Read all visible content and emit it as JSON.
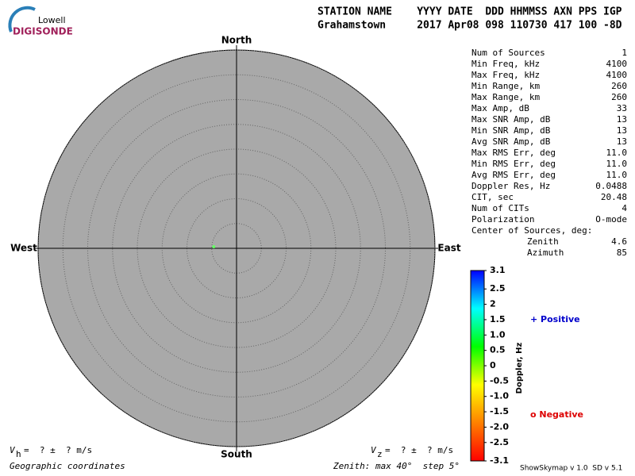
{
  "header": {
    "logo_top": "Lowell",
    "logo_main": "DIGISONDE",
    "labels": "STATION NAME    YYYY DATE  DDD HHMMSS AXN PPS IGP",
    "values": "Grahamstown     2017 Apr08 098 110730 417 100 -8D"
  },
  "chart_data": {
    "type": "skymap",
    "directions": {
      "north": "North",
      "south": "South",
      "west": "West",
      "east": "East"
    },
    "rlim": [
      0,
      40
    ],
    "rticks": [
      5,
      10,
      15,
      20,
      25,
      30,
      35,
      40
    ],
    "points": [
      {
        "zenith": 4.6,
        "azimuth": 274,
        "color": "#66ff66"
      }
    ],
    "colorbar": {
      "label": "Doppler, Hz",
      "clim": [
        -3.1,
        3.1
      ],
      "ticks": [
        3.1,
        2.5,
        {
          "value": 2,
          "label": "2"
        },
        1.5,
        {
          "value": 1,
          "label": "1.0"
        },
        0.5,
        0,
        -0.5,
        {
          "value": -1,
          "label": "-1.0"
        },
        -1.5,
        {
          "value": -2,
          "label": "-2.0"
        },
        -2.5,
        -3.1
      ],
      "colors": [
        "#ff0000",
        "#ff8000",
        "#ffff00",
        "#00ff00",
        "#00ffff",
        "#0000ff"
      ]
    },
    "legend": {
      "positive": "+ Positive",
      "positive_color": "#0000cc",
      "negative": "o Negative",
      "negative_color": "#dd0000"
    }
  },
  "stats": {
    "rows": [
      [
        "Num of Sources",
        "1"
      ],
      [
        "Min Freq, kHz",
        "4100"
      ],
      [
        "Max Freq, kHz",
        "4100"
      ],
      [
        "Min Range, km",
        "260"
      ],
      [
        "Max Range, km",
        "260"
      ],
      [
        "Max Amp, dB",
        "33"
      ],
      [
        "Max SNR Amp, dB",
        "13"
      ],
      [
        "Min SNR Amp, dB",
        "13"
      ],
      [
        "Avg SNR Amp, dB",
        "13"
      ],
      [
        "Max RMS Err, deg",
        "11.0"
      ],
      [
        "Min RMS Err, deg",
        "11.0"
      ],
      [
        "Avg RMS Err, deg",
        "11.0"
      ],
      [
        "Doppler Res, Hz",
        "0.0488"
      ],
      [
        "CIT, sec",
        "20.48"
      ],
      [
        "Num of CITs",
        "4"
      ],
      [
        "Polarization",
        "O-mode"
      ]
    ],
    "center_title": "Center of Sources, deg:",
    "center": [
      [
        "Zenith",
        "4.6"
      ],
      [
        "Azimuth",
        "85"
      ]
    ]
  },
  "footer": {
    "vh_symbol": "V",
    "vh_sub": "h",
    "vh_text": "=  ? ±  ? m/s",
    "vz_symbol": "V",
    "vz_sub": "z",
    "vz_text": "=  ? ±  ? m/s",
    "coords": "Geographic coordinates",
    "zenith": "Zenith: max 40°  step 5°",
    "version": "ShowSkymap v 1.0  SD v 5.1"
  }
}
